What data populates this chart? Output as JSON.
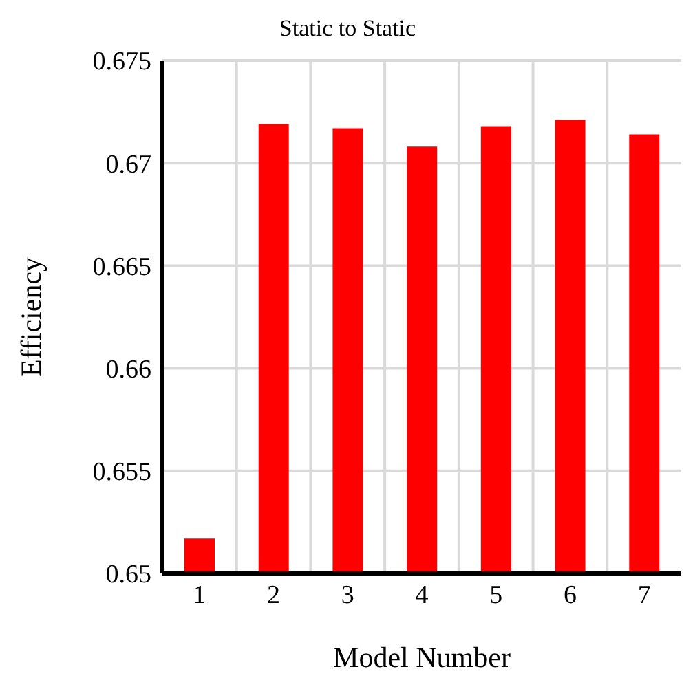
{
  "chart_data": {
    "type": "bar",
    "title": "Static to Static",
    "xlabel": "Model Number",
    "ylabel": "Efficiency",
    "categories": [
      "1",
      "2",
      "3",
      "4",
      "5",
      "6",
      "7"
    ],
    "values": [
      0.6517,
      0.6719,
      0.6717,
      0.6708,
      0.6718,
      0.6721,
      0.6714
    ],
    "color": "#ff0000",
    "ylim": [
      0.65,
      0.675
    ],
    "yticks": [
      {
        "value": 0.65,
        "label": "0.65"
      },
      {
        "value": 0.655,
        "label": "0.655"
      },
      {
        "value": 0.66,
        "label": "0.66"
      },
      {
        "value": 0.665,
        "label": "0.665"
      },
      {
        "value": 0.67,
        "label": "0.67"
      },
      {
        "value": 0.675,
        "label": "0.675"
      }
    ],
    "grid": true
  }
}
